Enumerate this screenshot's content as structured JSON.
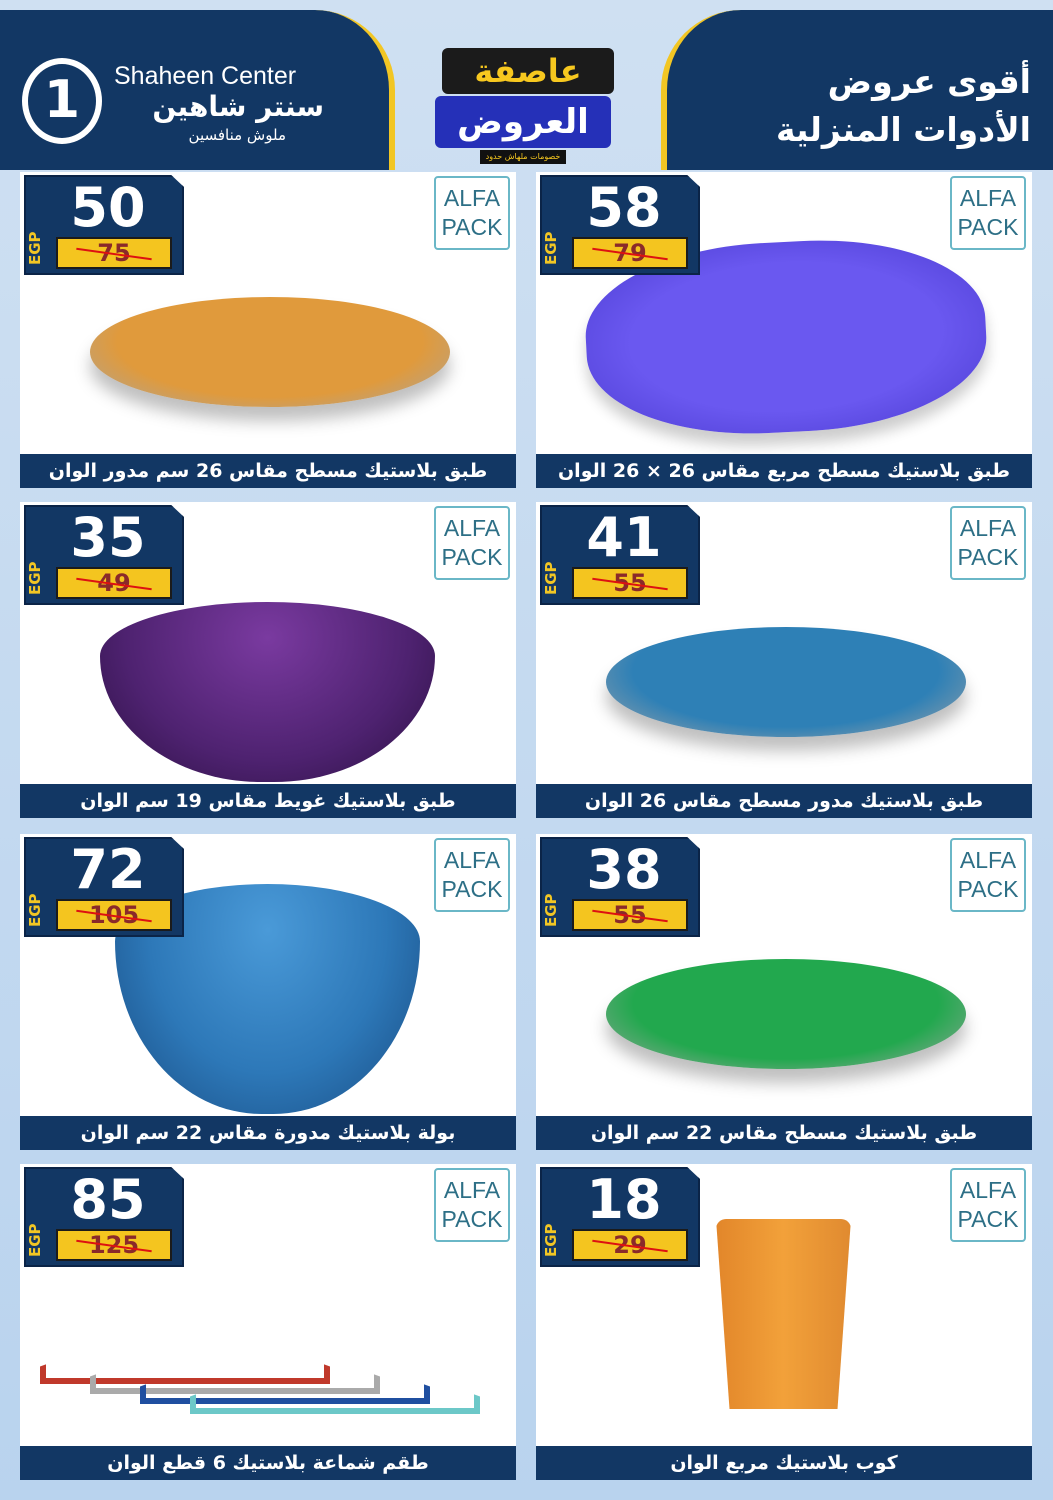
{
  "header": {
    "brand_en": "Shaheen Center",
    "brand_ar": "سنتر شاهين",
    "brand_tagline": "ملوش منافسين",
    "promo_title_1": "عاصفة",
    "promo_title_2": "العروض",
    "promo_sub": "خصومات ملهاش حدود",
    "headline_1": "أقوى عروض",
    "headline_2": "الأدوات المنزلية"
  },
  "currency": "EGP",
  "brand_logo": "ALFA PACK",
  "products": [
    {
      "price": "50",
      "old_price": "75",
      "name": "طبق بلاستيك مسطح مقاس 26 سم مدور الوان",
      "color": "#e09a3c"
    },
    {
      "price": "58",
      "old_price": "79",
      "name": "طبق بلاستيك مسطح مربع مقاس 26 × 26 الوان",
      "color": "#6a58f0"
    },
    {
      "price": "35",
      "old_price": "49",
      "name": "طبق بلاستيك غويط مقاس 19 سم الوان",
      "color": "#4e2270"
    },
    {
      "price": "41",
      "old_price": "55",
      "name": "طبق بلاستيك مدور مسطح مقاس 26 الوان",
      "color": "#2e80b6"
    },
    {
      "price": "72",
      "old_price": "105",
      "name": "بولة بلاستيك مدورة مقاس 22 سم الوان",
      "color": "#2d78b8"
    },
    {
      "price": "38",
      "old_price": "55",
      "name": "طبق بلاستيك مسطح مقاس 22 سم الوان",
      "color": "#22a84e"
    },
    {
      "price": "85",
      "old_price": "125",
      "name": "طقم شماعة بلاستيك 6 قطع الوان",
      "color": "#3b62b0"
    },
    {
      "price": "18",
      "old_price": "29",
      "name": "كوب بلاستيك مربع الوان",
      "color": "#f2a13a"
    }
  ]
}
